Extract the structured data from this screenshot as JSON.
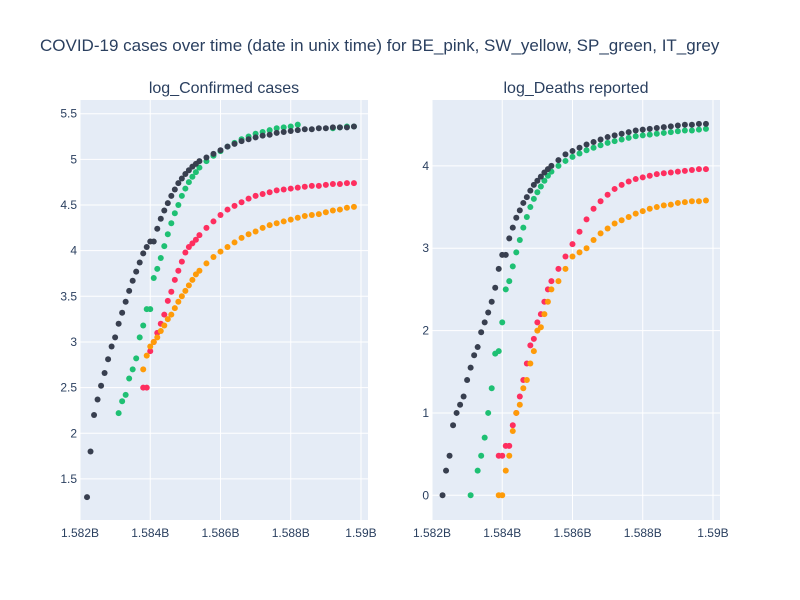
{
  "colors": {
    "plot_bg": "#e5ecf6",
    "grid": "#ffffff",
    "text": "#2a3f5f",
    "BE": "#fe2e5f",
    "SW": "#fe9b09",
    "SP": "#1ec073",
    "IT": "#383f4f"
  },
  "chart_data": {
    "type": "scatter",
    "title": "COVID-19 cases over time (date in unix time) for BE_pink, SW_yellow, SP_green, IT_grey",
    "grid": true,
    "legend": "none",
    "subplots": [
      {
        "title": "log_Confirmed cases",
        "xlim": [
          1582000000,
          1590200000
        ],
        "ylim": [
          1.05,
          5.65
        ],
        "xticks": [
          1582000000,
          1584000000,
          1586000000,
          1588000000,
          1590000000
        ],
        "xtick_labels": [
          "1.582B",
          "1.584B",
          "1.586B",
          "1.588B",
          "1.59B"
        ],
        "yticks": [
          1.5,
          2,
          2.5,
          3,
          3.5,
          4,
          4.5,
          5,
          5.5
        ],
        "ytick_labels": [
          "1.5",
          "2",
          "2.5",
          "3",
          "3.5",
          "4",
          "4.5",
          "5",
          "5.5"
        ],
        "series": [
          {
            "key": "BE",
            "x": [
              1583800000,
              1583900000,
              1584000000,
              1584100000,
              1584200000,
              1584300000,
              1584400000,
              1584500000,
              1584600000,
              1584700000,
              1584800000,
              1584900000,
              1585000000,
              1585100000,
              1585200000,
              1585300000,
              1585400000,
              1585600000,
              1585800000,
              1586000000,
              1586200000,
              1586400000,
              1586600000,
              1586800000,
              1587000000,
              1587200000,
              1587400000,
              1587600000,
              1587800000,
              1588000000,
              1588200000,
              1588400000,
              1588600000,
              1588800000,
              1589000000,
              1589200000,
              1589400000,
              1589600000,
              1589800000
            ],
            "y": [
              2.5,
              2.5,
              2.9,
              3.0,
              3.1,
              3.2,
              3.3,
              3.45,
              3.55,
              3.68,
              3.78,
              3.88,
              3.98,
              4.04,
              4.08,
              4.12,
              4.17,
              4.25,
              4.32,
              4.39,
              4.45,
              4.49,
              4.53,
              4.57,
              4.6,
              4.62,
              4.64,
              4.66,
              4.67,
              4.68,
              4.69,
              4.7,
              4.71,
              4.71,
              4.72,
              4.73,
              4.73,
              4.74,
              4.74
            ]
          },
          {
            "key": "SW",
            "x": [
              1583800000,
              1583900000,
              1584000000,
              1584100000,
              1584200000,
              1584300000,
              1584400000,
              1584500000,
              1584600000,
              1584700000,
              1584800000,
              1584900000,
              1585000000,
              1585100000,
              1585200000,
              1585300000,
              1585400000,
              1585600000,
              1585800000,
              1586000000,
              1586200000,
              1586400000,
              1586600000,
              1586800000,
              1587000000,
              1587200000,
              1587400000,
              1587600000,
              1587800000,
              1588000000,
              1588200000,
              1588400000,
              1588600000,
              1588800000,
              1589000000,
              1589200000,
              1589400000,
              1589600000,
              1589800000
            ],
            "y": [
              2.7,
              2.85,
              2.95,
              3.0,
              3.05,
              3.12,
              3.18,
              3.25,
              3.3,
              3.37,
              3.44,
              3.5,
              3.56,
              3.62,
              3.68,
              3.74,
              3.78,
              3.86,
              3.93,
              3.99,
              4.04,
              4.09,
              4.14,
              4.18,
              4.21,
              4.25,
              4.28,
              4.3,
              4.32,
              4.34,
              4.36,
              4.38,
              4.39,
              4.4,
              4.42,
              4.44,
              4.45,
              4.47,
              4.48
            ]
          },
          {
            "key": "SP",
            "x": [
              1583100000,
              1583200000,
              1583300000,
              1583400000,
              1583500000,
              1583600000,
              1583700000,
              1583800000,
              1583900000,
              1584000000,
              1584100000,
              1584200000,
              1584300000,
              1584400000,
              1584500000,
              1584600000,
              1584700000,
              1584800000,
              1584900000,
              1585000000,
              1585100000,
              1585200000,
              1585300000,
              1585400000,
              1585600000,
              1585800000,
              1586000000,
              1586200000,
              1586400000,
              1586600000,
              1586800000,
              1587000000,
              1587200000,
              1587400000,
              1587600000,
              1587800000,
              1588000000,
              1588200000,
              1589200000,
              1589400000,
              1589600000,
              1589800000
            ],
            "y": [
              2.22,
              2.35,
              2.42,
              2.6,
              2.7,
              2.82,
              3.05,
              3.18,
              3.36,
              3.36,
              3.7,
              3.8,
              3.92,
              4.05,
              4.18,
              4.3,
              4.41,
              4.5,
              4.6,
              4.68,
              4.75,
              4.81,
              4.86,
              4.91,
              4.98,
              5.04,
              5.09,
              5.14,
              5.18,
              5.22,
              5.25,
              5.28,
              5.3,
              5.32,
              5.34,
              5.35,
              5.36,
              5.38,
              5.34,
              5.35,
              5.36,
              5.36
            ]
          },
          {
            "key": "IT",
            "x": [
              1582200000,
              1582300000,
              1582400000,
              1582500000,
              1582600000,
              1582700000,
              1582800000,
              1582900000,
              1583000000,
              1583100000,
              1583200000,
              1583300000,
              1583400000,
              1583500000,
              1583600000,
              1583700000,
              1583800000,
              1583900000,
              1584000000,
              1584100000,
              1584200000,
              1584300000,
              1584400000,
              1584500000,
              1584600000,
              1584700000,
              1584800000,
              1584900000,
              1585000000,
              1585100000,
              1585200000,
              1585300000,
              1585400000,
              1585600000,
              1585800000,
              1586000000,
              1586200000,
              1586400000,
              1586600000,
              1586800000,
              1587000000,
              1587200000,
              1587400000,
              1587600000,
              1587800000,
              1588000000,
              1588200000,
              1588400000,
              1588600000,
              1588800000,
              1589000000,
              1589200000,
              1589400000,
              1589600000,
              1589800000
            ],
            "y": [
              1.3,
              1.8,
              2.2,
              2.37,
              2.52,
              2.66,
              2.81,
              2.95,
              3.05,
              3.2,
              3.32,
              3.44,
              3.56,
              3.67,
              3.77,
              3.87,
              3.97,
              4.04,
              4.1,
              4.1,
              4.24,
              4.35,
              4.44,
              4.52,
              4.6,
              4.67,
              4.74,
              4.79,
              4.84,
              4.88,
              4.92,
              4.95,
              4.98,
              5.02,
              5.06,
              5.1,
              5.14,
              5.17,
              5.2,
              5.22,
              5.24,
              5.26,
              5.27,
              5.29,
              5.3,
              5.31,
              5.32,
              5.33,
              5.33,
              5.34,
              5.34,
              5.35,
              5.35,
              5.35,
              5.36
            ]
          }
        ]
      },
      {
        "title": "log_Deaths reported",
        "xlim": [
          1582000000,
          1590200000
        ],
        "ylim": [
          -0.3,
          4.8
        ],
        "xticks": [
          1582000000,
          1584000000,
          1586000000,
          1588000000,
          1590000000
        ],
        "xtick_labels": [
          "1.582B",
          "1.584B",
          "1.586B",
          "1.588B",
          "1.59B"
        ],
        "yticks": [
          0,
          1,
          2,
          3,
          4
        ],
        "ytick_labels": [
          "0",
          "1",
          "2",
          "3",
          "4"
        ],
        "series": [
          {
            "key": "BE",
            "x": [
              1583900000,
              1584000000,
              1584100000,
              1584200000,
              1584300000,
              1584400000,
              1584500000,
              1584600000,
              1584700000,
              1584800000,
              1584900000,
              1585000000,
              1585100000,
              1585200000,
              1585300000,
              1585400000,
              1585600000,
              1585800000,
              1586000000,
              1586200000,
              1586400000,
              1586600000,
              1586800000,
              1587000000,
              1587200000,
              1587400000,
              1587600000,
              1587800000,
              1588000000,
              1588200000,
              1588400000,
              1588600000,
              1588800000,
              1589000000,
              1589200000,
              1589400000,
              1589600000,
              1589800000
            ],
            "y": [
              0.48,
              0.48,
              0.6,
              0.6,
              0.85,
              1.0,
              1.2,
              1.4,
              1.6,
              1.82,
              1.9,
              2.1,
              2.2,
              2.35,
              2.5,
              2.6,
              2.75,
              2.9,
              3.05,
              3.2,
              3.35,
              3.48,
              3.57,
              3.65,
              3.72,
              3.77,
              3.81,
              3.84,
              3.86,
              3.88,
              3.9,
              3.91,
              3.92,
              3.93,
              3.94,
              3.95,
              3.96,
              3.96
            ]
          },
          {
            "key": "SW",
            "x": [
              1583900000,
              1584000000,
              1584100000,
              1584200000,
              1584300000,
              1584400000,
              1584500000,
              1584600000,
              1584700000,
              1584800000,
              1584900000,
              1585000000,
              1585100000,
              1585200000,
              1585300000,
              1585400000,
              1585600000,
              1585800000,
              1586000000,
              1586200000,
              1586400000,
              1586600000,
              1586800000,
              1587000000,
              1587200000,
              1587400000,
              1587600000,
              1587800000,
              1588000000,
              1588200000,
              1588400000,
              1588600000,
              1588800000,
              1589000000,
              1589200000,
              1589400000,
              1589600000,
              1589800000
            ],
            "y": [
              0,
              0,
              0.3,
              0.48,
              0.78,
              1.0,
              1.1,
              1.3,
              1.4,
              1.6,
              1.75,
              2.0,
              2.04,
              2.2,
              2.35,
              2.5,
              2.6,
              2.75,
              2.9,
              2.95,
              3.0,
              3.1,
              3.18,
              3.24,
              3.3,
              3.34,
              3.38,
              3.42,
              3.45,
              3.48,
              3.5,
              3.52,
              3.53,
              3.55,
              3.56,
              3.57,
              3.57,
              3.58
            ]
          },
          {
            "key": "SP",
            "x": [
              1583100000,
              1583300000,
              1583400000,
              1583500000,
              1583600000,
              1583700000,
              1583800000,
              1583900000,
              1584000000,
              1584100000,
              1584200000,
              1584300000,
              1584400000,
              1584500000,
              1584600000,
              1584700000,
              1584800000,
              1584900000,
              1585000000,
              1585100000,
              1585200000,
              1585300000,
              1585400000,
              1585600000,
              1585800000,
              1586000000,
              1586200000,
              1586400000,
              1586600000,
              1586800000,
              1587000000,
              1587200000,
              1587400000,
              1587600000,
              1587800000,
              1588000000,
              1588200000,
              1588400000,
              1588600000,
              1588800000,
              1589000000,
              1589200000,
              1589400000,
              1589600000,
              1589800000
            ],
            "y": [
              0,
              0.3,
              0.48,
              0.7,
              1.0,
              1.3,
              1.72,
              1.75,
              2.1,
              2.5,
              2.6,
              2.78,
              2.95,
              3.1,
              3.25,
              3.38,
              3.5,
              3.6,
              3.68,
              3.75,
              3.82,
              3.88,
              3.93,
              4.0,
              4.06,
              4.11,
              4.15,
              4.19,
              4.22,
              4.25,
              4.28,
              4.3,
              4.32,
              4.34,
              4.36,
              4.37,
              4.38,
              4.39,
              4.4,
              4.41,
              4.42,
              4.43,
              4.43,
              4.44,
              4.45
            ]
          },
          {
            "key": "IT",
            "x": [
              1582300000,
              1582400000,
              1582500000,
              1582600000,
              1582700000,
              1582800000,
              1582900000,
              1583000000,
              1583100000,
              1583200000,
              1583300000,
              1583400000,
              1583500000,
              1583600000,
              1583700000,
              1583800000,
              1583900000,
              1584000000,
              1584100000,
              1584200000,
              1584300000,
              1584400000,
              1584500000,
              1584600000,
              1584700000,
              1584800000,
              1584900000,
              1585000000,
              1585100000,
              1585200000,
              1585300000,
              1585400000,
              1585600000,
              1585800000,
              1586000000,
              1586200000,
              1586400000,
              1586600000,
              1586800000,
              1587000000,
              1587200000,
              1587400000,
              1587600000,
              1587800000,
              1588000000,
              1588200000,
              1588400000,
              1588600000,
              1588800000,
              1589000000,
              1589200000,
              1589400000,
              1589600000,
              1589800000
            ],
            "y": [
              0,
              0.3,
              0.48,
              0.85,
              1.0,
              1.1,
              1.2,
              1.4,
              1.55,
              1.7,
              1.8,
              1.98,
              2.1,
              2.22,
              2.35,
              2.52,
              2.75,
              2.92,
              2.92,
              3.12,
              3.25,
              3.37,
              3.46,
              3.55,
              3.62,
              3.7,
              3.77,
              3.82,
              3.87,
              3.92,
              3.96,
              4.0,
              4.07,
              4.14,
              4.18,
              4.22,
              4.26,
              4.29,
              4.32,
              4.35,
              4.37,
              4.39,
              4.41,
              4.43,
              4.44,
              4.45,
              4.46,
              4.47,
              4.48,
              4.49,
              4.5,
              4.5,
              4.51,
              4.51
            ]
          }
        ]
      }
    ]
  }
}
